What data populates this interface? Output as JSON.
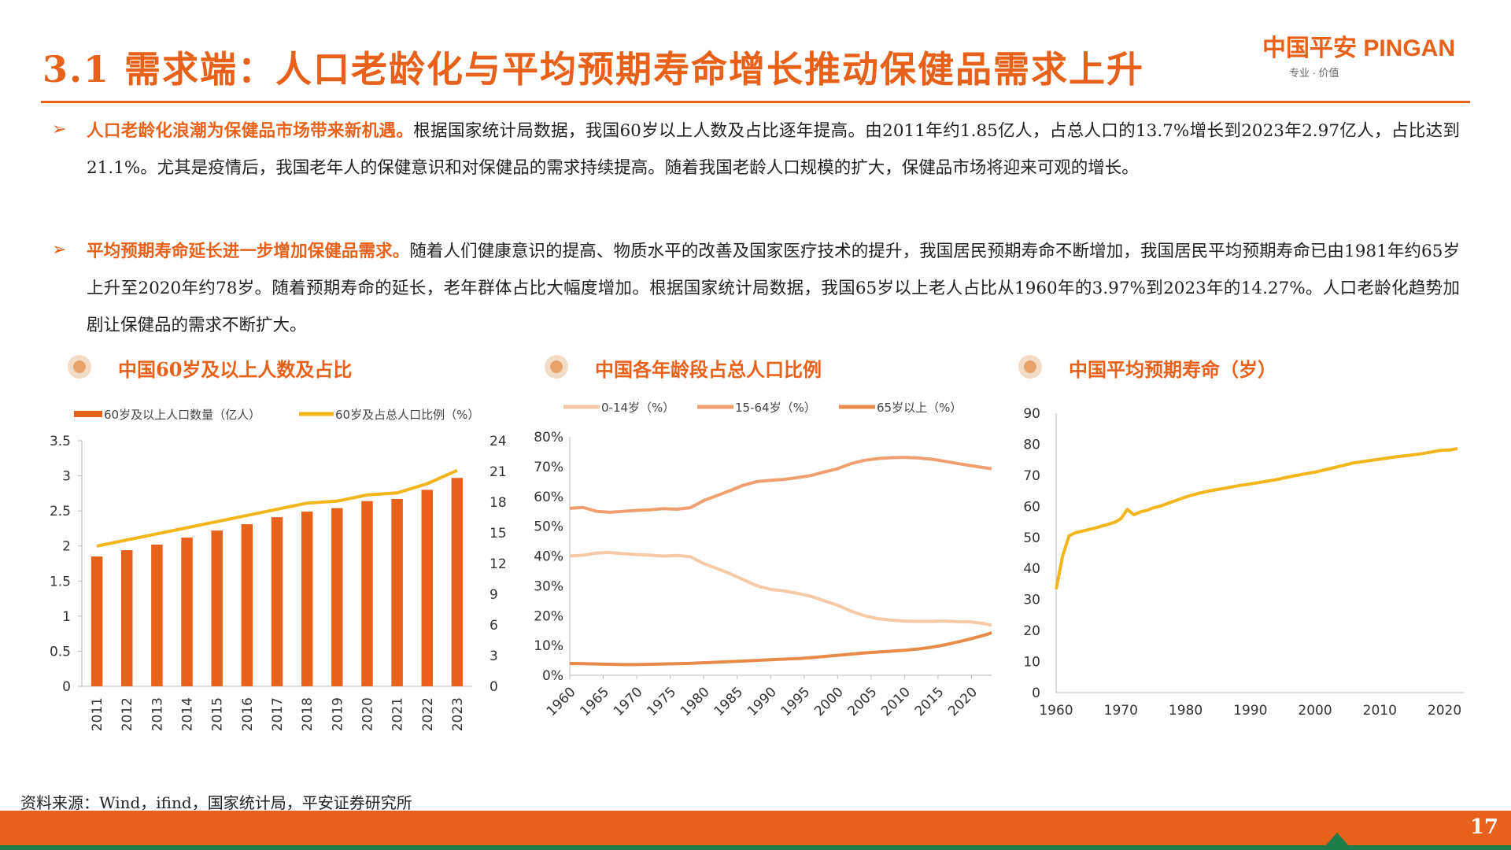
{
  "header": {
    "title": "3.1 需求端：人口老龄化与平均预期寿命增长推动保健品需求上升",
    "logo_text": "中国平安 PINGAN",
    "logo_sub": "专业 · 价值",
    "page_number": "17"
  },
  "paragraphs": [
    {
      "highlight": "人口老龄化浪潮为保健品市场带来新机遇。",
      "text": "根据国家统计局数据，我国60岁以上人数及占比逐年提高。由2011年约1.85亿人，占总人口的13.7%增长到2023年2.97亿人，占比达到21.1%。尤其是疫情后，我国老年人的保健意识和对保健品的需求持续提高。随着我国老龄人口规模的扩大，保健品市场将迎来可观的增长。"
    },
    {
      "highlight": "平均预期寿命延长进一步增加保健品需求。",
      "text": "随着人们健康意识的提高、物质水平的改善及国家医疗技术的提升，我国居民预期寿命不断增加，我国居民平均预期寿命已由1981年约65岁上升至2020年约78岁。随着预期寿命的延长，老年群体占比大幅度增加。根据国家统计局数据，我国65岁以上老人占比从1960年的3.97%到2023年的14.27%。人口老龄化趋势加剧让保健品的需求不断扩大。"
    }
  ],
  "chart_titles": [
    "中国60岁及以上人数及占比",
    "中国各年龄段占总人口比例",
    "中国平均预期寿命（岁）"
  ],
  "source": "资料来源：Wind，ifind，国家统计局，平安证券研究所",
  "colors": {
    "accent": "#e8611a",
    "bar": "#e8611a",
    "ratio_line": "#f2b51a",
    "age_0_14": "#f6c9a8",
    "age_15_64": "#f0a070",
    "age_65": "#e88a48",
    "life": "#f2b51a"
  },
  "chart_data": [
    {
      "type": "bar",
      "categories": [
        "2011",
        "2012",
        "2013",
        "2014",
        "2015",
        "2016",
        "2017",
        "2018",
        "2019",
        "2020",
        "2021",
        "2022",
        "2023"
      ],
      "series": [
        {
          "name": "60岁及以上人口数量（亿人）",
          "type": "bar",
          "axis": "left",
          "values": [
            1.85,
            1.94,
            2.02,
            2.12,
            2.22,
            2.31,
            2.41,
            2.49,
            2.54,
            2.64,
            2.67,
            2.8,
            2.97
          ]
        },
        {
          "name": "60岁及占总人口比例（%）",
          "type": "line",
          "axis": "right",
          "values": [
            13.7,
            14.3,
            14.9,
            15.5,
            16.1,
            16.7,
            17.3,
            17.9,
            18.1,
            18.7,
            18.9,
            19.8,
            21.1
          ]
        }
      ],
      "ylim": [
        0,
        3.5
      ],
      "yticks": [
        "0",
        "0.5",
        "1",
        "1.5",
        "2",
        "2.5",
        "3",
        "3.5"
      ],
      "y2lim": [
        0,
        24
      ],
      "y2ticks": [
        "0",
        "3",
        "6",
        "9",
        "12",
        "15",
        "18",
        "21",
        "24"
      ],
      "legend": "top"
    },
    {
      "type": "line",
      "x": [
        1960,
        1962,
        1964,
        1966,
        1968,
        1970,
        1972,
        1974,
        1976,
        1978,
        1980,
        1982,
        1984,
        1986,
        1988,
        1990,
        1992,
        1994,
        1996,
        1998,
        2000,
        2002,
        2004,
        2006,
        2008,
        2010,
        2012,
        2014,
        2016,
        2018,
        2020,
        2022,
        2023
      ],
      "xticks": [
        "1960",
        "1965",
        "1970",
        "1975",
        "1980",
        "1985",
        "1990",
        "1995",
        "2000",
        "2005",
        "2010",
        "2015",
        "2020"
      ],
      "series": [
        {
          "name": "0-14岁（%）",
          "values": [
            40.0,
            40.3,
            41.0,
            41.2,
            40.8,
            40.5,
            40.3,
            40.0,
            40.2,
            39.8,
            37.5,
            35.8,
            34.0,
            32.0,
            30.0,
            28.8,
            28.3,
            27.5,
            26.5,
            25.0,
            23.5,
            21.5,
            20.0,
            19.0,
            18.5,
            18.2,
            18.1,
            18.1,
            18.2,
            18.0,
            17.9,
            17.3,
            16.8
          ]
        },
        {
          "name": "15-64岁（%）",
          "values": [
            56.0,
            56.3,
            55.0,
            54.7,
            55.0,
            55.3,
            55.5,
            55.9,
            55.7,
            56.2,
            58.6,
            60.3,
            62.0,
            63.8,
            65.0,
            65.4,
            65.7,
            66.3,
            67.0,
            68.2,
            69.3,
            71.0,
            72.1,
            72.7,
            73.0,
            73.1,
            72.9,
            72.5,
            71.8,
            71.0,
            70.3,
            69.6,
            69.3
          ]
        },
        {
          "name": "65岁以上（%）",
          "values": [
            3.97,
            3.9,
            3.8,
            3.7,
            3.6,
            3.6,
            3.7,
            3.8,
            3.9,
            4.0,
            4.2,
            4.4,
            4.6,
            4.8,
            5.0,
            5.2,
            5.4,
            5.6,
            5.9,
            6.3,
            6.7,
            7.1,
            7.5,
            7.8,
            8.1,
            8.4,
            8.8,
            9.4,
            10.2,
            11.2,
            12.3,
            13.5,
            14.27
          ]
        }
      ],
      "ylim": [
        0,
        80
      ],
      "yticks": [
        "0%",
        "10%",
        "20%",
        "30%",
        "40%",
        "50%",
        "60%",
        "70%",
        "80%"
      ],
      "legend": "top"
    },
    {
      "type": "line",
      "x": [
        1960,
        1961,
        1962,
        1963,
        1964,
        1965,
        1966,
        1967,
        1968,
        1969,
        1970,
        1971,
        1972,
        1973,
        1974,
        1975,
        1976,
        1978,
        1980,
        1982,
        1984,
        1986,
        1988,
        1990,
        1992,
        1994,
        1996,
        1998,
        2000,
        2002,
        2004,
        2006,
        2008,
        2010,
        2012,
        2014,
        2016,
        2018,
        2019,
        2020,
        2021,
        2022
      ],
      "xticks": [
        "1960",
        "1970",
        "1980",
        "1990",
        "2000",
        "2010",
        "2020"
      ],
      "series": [
        {
          "name": "平均预期寿命",
          "values": [
            33.3,
            44.0,
            50.5,
            51.5,
            52.0,
            52.5,
            53.0,
            53.6,
            54.2,
            54.8,
            56.0,
            59.0,
            57.3,
            58.2,
            58.7,
            59.5,
            60.0,
            61.5,
            63.0,
            64.2,
            65.1,
            65.8,
            66.6,
            67.2,
            67.9,
            68.6,
            69.5,
            70.3,
            71.0,
            72.0,
            73.0,
            74.0,
            74.6,
            75.2,
            75.8,
            76.3,
            76.8,
            77.5,
            77.9,
            78.1,
            78.2,
            78.6
          ]
        }
      ],
      "ylim": [
        0,
        90
      ],
      "yticks": [
        "0",
        "10",
        "20",
        "30",
        "40",
        "50",
        "60",
        "70",
        "80",
        "90"
      ]
    }
  ]
}
